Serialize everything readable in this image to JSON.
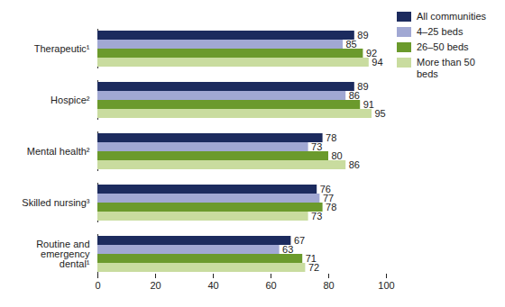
{
  "chart_data": {
    "type": "bar",
    "orientation": "horizontal",
    "categories": [
      "Therapeutic¹",
      "Hospice²",
      "Mental health²",
      "Skilled nursing³",
      "Routine and\nemergency\ndental¹"
    ],
    "series": [
      {
        "name": "All communities",
        "color": "#1c2b5e",
        "values": [
          89,
          89,
          78,
          76,
          67
        ]
      },
      {
        "name": "4–25 beds",
        "color": "#a1a8d3",
        "values": [
          85,
          86,
          73,
          77,
          63
        ]
      },
      {
        "name": "26–50 beds",
        "color": "#6b9a2c",
        "values": [
          92,
          91,
          80,
          78,
          71
        ]
      },
      {
        "name": "More than 50 beds",
        "color": "#c9dc9f",
        "values": [
          94,
          95,
          86,
          73,
          72
        ]
      }
    ],
    "xlim": [
      0,
      100
    ],
    "xticks": [
      0,
      20,
      40,
      60,
      80,
      100
    ],
    "grid": false,
    "legend": "top-right",
    "data_labels": true
  }
}
